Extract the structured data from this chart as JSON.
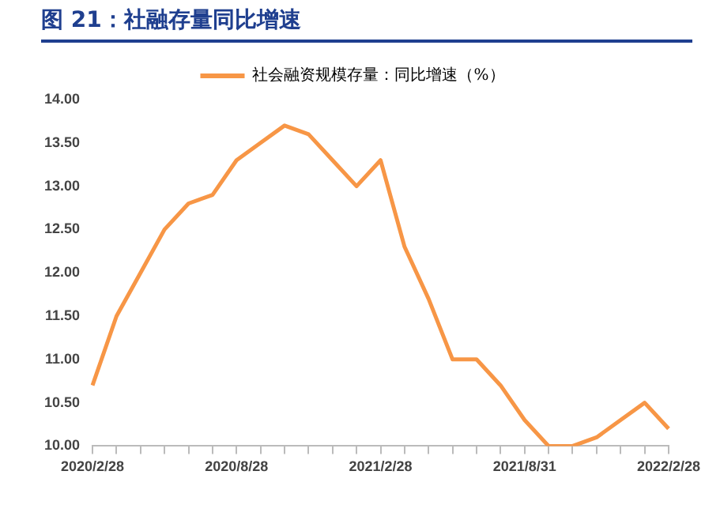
{
  "chart_data": {
    "type": "line",
    "title": "图 21：社融存量同比增速",
    "categories": [
      "2020/2/28",
      null,
      null,
      null,
      null,
      null,
      "2020/8/28",
      null,
      null,
      null,
      null,
      null,
      "2021/2/28",
      null,
      null,
      null,
      null,
      null,
      "2021/8/31",
      null,
      null,
      null,
      null,
      null,
      "2022/2/28"
    ],
    "series": [
      {
        "name": "社会融资规模存量：同比增速（%）",
        "color": "#f79646",
        "values": [
          10.7,
          11.5,
          12.0,
          12.5,
          12.8,
          12.9,
          13.3,
          13.5,
          13.7,
          13.6,
          13.3,
          13.0,
          13.3,
          12.3,
          11.7,
          11.0,
          11.0,
          10.7,
          10.3,
          10.0,
          10.0,
          10.1,
          10.3,
          10.5,
          10.2
        ]
      }
    ],
    "ylim": [
      10,
      14
    ],
    "yticks": [
      {
        "value": 10,
        "label": "10.00"
      },
      {
        "value": 10.5,
        "label": "10.50"
      },
      {
        "value": 11,
        "label": "11.00"
      },
      {
        "value": 11.5,
        "label": "11.50"
      },
      {
        "value": 12,
        "label": "12.00"
      },
      {
        "value": 12.5,
        "label": "12.50"
      },
      {
        "value": 13,
        "label": "13.00"
      },
      {
        "value": 13.5,
        "label": "13.50"
      },
      {
        "value": 14,
        "label": "14.00"
      }
    ],
    "grid": false,
    "legend": "top",
    "marker": "none",
    "line_style": "solid"
  }
}
